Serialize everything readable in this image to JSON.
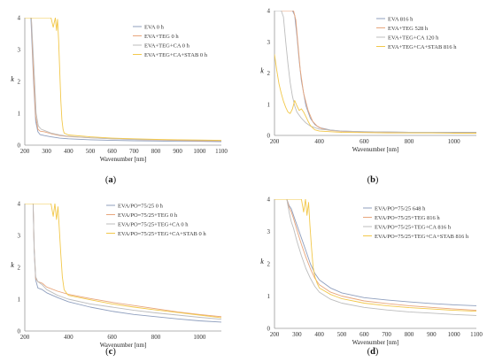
{
  "colors": {
    "series1": "#8f9fbe",
    "series2": "#e8a67c",
    "series3": "#bdbdbd",
    "series4": "#f2c84b",
    "axis": "#9a9a9a"
  },
  "chart_data": [
    {
      "type": "line",
      "caption": "a",
      "xlabel": "Wavenumber [nm]",
      "ylabel": "k",
      "xlim": [
        200,
        1100
      ],
      "ylim": [
        0,
        4
      ],
      "xticks": [
        200,
        300,
        400,
        500,
        600,
        700,
        800,
        900,
        1000,
        1100
      ],
      "yticks": [
        0,
        1,
        2,
        3,
        4
      ],
      "legend": "top-right",
      "series": [
        {
          "name": "EVA 0 h",
          "x": [
            200,
            228,
            240,
            250,
            260,
            270,
            290,
            320,
            360,
            400,
            500,
            600,
            700,
            800,
            900,
            1000,
            1100
          ],
          "values": [
            4.0,
            4.0,
            2.0,
            0.75,
            0.42,
            0.33,
            0.3,
            0.26,
            0.22,
            0.2,
            0.17,
            0.15,
            0.14,
            0.13,
            0.12,
            0.12,
            0.11
          ]
        },
        {
          "name": "EVA+TEG 0 h",
          "x": [
            200,
            230,
            240,
            250,
            260,
            270,
            290,
            320,
            360,
            400,
            500,
            600,
            700,
            800,
            900,
            1000,
            1100
          ],
          "values": [
            4.0,
            4.0,
            2.2,
            0.9,
            0.5,
            0.44,
            0.42,
            0.36,
            0.3,
            0.27,
            0.23,
            0.2,
            0.18,
            0.16,
            0.15,
            0.14,
            0.13
          ]
        },
        {
          "name": "EVA+TEG+CA 0 h",
          "x": [
            200,
            230,
            242,
            252,
            262,
            275,
            290,
            320,
            360,
            400,
            500,
            600,
            700,
            800,
            900,
            1000,
            1100
          ],
          "values": [
            4.0,
            4.0,
            2.4,
            1.0,
            0.6,
            0.5,
            0.46,
            0.38,
            0.32,
            0.28,
            0.23,
            0.2,
            0.18,
            0.17,
            0.16,
            0.15,
            0.14
          ]
        },
        {
          "name": "EVA+TEG+CA+STAB 0 h",
          "x": [
            200,
            320,
            330,
            340,
            345,
            350,
            355,
            360,
            365,
            370,
            375,
            380,
            400,
            500,
            600,
            700,
            800,
            900,
            1000,
            1100
          ],
          "values": [
            4.0,
            4.0,
            3.7,
            4.0,
            3.6,
            3.95,
            3.3,
            2.3,
            1.4,
            0.8,
            0.5,
            0.38,
            0.32,
            0.26,
            0.22,
            0.2,
            0.18,
            0.17,
            0.16,
            0.15
          ]
        }
      ]
    },
    {
      "type": "line",
      "caption": "b",
      "xlabel": "Wavenumber [nm]",
      "ylabel": "k",
      "xlim": [
        200,
        1100
      ],
      "ylim": [
        0,
        4
      ],
      "xticks": [
        200,
        400,
        600,
        800,
        1000
      ],
      "yticks": [
        0,
        1,
        2,
        3,
        4
      ],
      "legend": "top-right",
      "series": [
        {
          "name": "EVA 816 h",
          "x": [
            200,
            280,
            290,
            300,
            310,
            320,
            340,
            360,
            380,
            400,
            450,
            500,
            600,
            700,
            800,
            900,
            1000,
            1100
          ],
          "values": [
            4.0,
            4.0,
            3.85,
            3.2,
            2.4,
            1.75,
            0.95,
            0.55,
            0.35,
            0.25,
            0.17,
            0.14,
            0.12,
            0.11,
            0.1,
            0.1,
            0.1,
            0.1
          ]
        },
        {
          "name": "EVA+TEG 528 h",
          "x": [
            200,
            285,
            295,
            305,
            315,
            330,
            350,
            370,
            390,
            410,
            450,
            500,
            600,
            700,
            800,
            900,
            1000,
            1100
          ],
          "values": [
            4.0,
            4.0,
            3.7,
            2.9,
            2.1,
            1.35,
            0.8,
            0.45,
            0.3,
            0.22,
            0.16,
            0.13,
            0.11,
            0.1,
            0.1,
            0.09,
            0.09,
            0.09
          ]
        },
        {
          "name": "EVA+TEG+CA 120 h",
          "x": [
            200,
            230,
            240,
            250,
            260,
            270,
            280,
            290,
            300,
            320,
            340,
            360,
            380,
            400,
            500,
            600,
            700,
            800,
            900,
            1000,
            1100
          ],
          "values": [
            4.0,
            4.0,
            3.8,
            3.0,
            2.3,
            1.7,
            1.25,
            0.95,
            0.75,
            0.55,
            0.4,
            0.3,
            0.25,
            0.2,
            0.14,
            0.12,
            0.11,
            0.1,
            0.1,
            0.09,
            0.09
          ]
        },
        {
          "name": "EVA+TEG+CA+STAB 816 h",
          "x": [
            200,
            210,
            220,
            230,
            240,
            250,
            260,
            270,
            280,
            290,
            300,
            310,
            320,
            330,
            340,
            350,
            360,
            370,
            380,
            400,
            500,
            600,
            700,
            800,
            900,
            1000,
            1100
          ],
          "values": [
            2.6,
            2.1,
            1.65,
            1.35,
            1.1,
            0.9,
            0.75,
            0.7,
            0.85,
            1.12,
            0.95,
            0.8,
            0.85,
            0.75,
            0.6,
            0.45,
            0.32,
            0.24,
            0.18,
            0.14,
            0.1,
            0.09,
            0.08,
            0.08,
            0.08,
            0.07,
            0.07
          ]
        }
      ]
    },
    {
      "type": "line",
      "caption": "c",
      "xlabel": "Wavenumber [nm]",
      "ylabel": "k",
      "xlim": [
        200,
        1100
      ],
      "ylim": [
        0,
        4
      ],
      "xticks": [
        200,
        400,
        600,
        800,
        1000
      ],
      "yticks": [
        0,
        1,
        2,
        3,
        4
      ],
      "legend": "top-right",
      "series": [
        {
          "name": "EVA/PO=75/25 0 h",
          "x": [
            200,
            238,
            243,
            250,
            260,
            280,
            300,
            350,
            400,
            500,
            600,
            700,
            800,
            900,
            1000,
            1100
          ],
          "values": [
            4.0,
            4.0,
            2.5,
            1.6,
            1.35,
            1.3,
            1.2,
            1.05,
            0.92,
            0.75,
            0.62,
            0.52,
            0.45,
            0.38,
            0.32,
            0.28
          ]
        },
        {
          "name": "EVA/PO=75/25+TEG 0 h",
          "x": [
            200,
            238,
            243,
            250,
            260,
            280,
            300,
            350,
            400,
            500,
            600,
            700,
            800,
            900,
            1000,
            1100
          ],
          "values": [
            4.0,
            4.0,
            2.6,
            1.65,
            1.55,
            1.5,
            1.38,
            1.25,
            1.15,
            1.02,
            0.9,
            0.8,
            0.7,
            0.6,
            0.52,
            0.45
          ]
        },
        {
          "name": "EVA/PO=75/25+TEG+CA 0 h",
          "x": [
            200,
            238,
            243,
            250,
            260,
            280,
            300,
            350,
            400,
            500,
            600,
            700,
            800,
            900,
            1000,
            1100
          ],
          "values": [
            4.0,
            4.0,
            2.6,
            1.7,
            1.55,
            1.45,
            1.3,
            1.12,
            1.0,
            0.85,
            0.75,
            0.65,
            0.57,
            0.5,
            0.43,
            0.37
          ]
        },
        {
          "name": "EVA/PO=75/25+TEG+CA+STAB 0 h",
          "x": [
            200,
            320,
            330,
            338,
            345,
            352,
            358,
            365,
            372,
            380,
            390,
            400,
            500,
            600,
            700,
            800,
            900,
            1000,
            1100
          ],
          "values": [
            4.0,
            4.0,
            3.6,
            4.0,
            3.5,
            3.9,
            3.2,
            2.4,
            1.7,
            1.3,
            1.2,
            1.12,
            0.98,
            0.85,
            0.75,
            0.66,
            0.58,
            0.5,
            0.42
          ]
        }
      ]
    },
    {
      "type": "line",
      "caption": "d",
      "xlabel": "Wavenumber [nm]",
      "ylabel": "k",
      "xlim": [
        200,
        1100
      ],
      "ylim": [
        0,
        4
      ],
      "xticks": [
        200,
        300,
        400,
        500,
        600,
        700,
        800,
        900,
        1000,
        1100
      ],
      "yticks": [
        0,
        1,
        2,
        3,
        4
      ],
      "legend": "top-right",
      "series": [
        {
          "name": "EVA/PO=75/25 648 h",
          "x": [
            200,
            255,
            265,
            275,
            285,
            300,
            320,
            340,
            360,
            380,
            400,
            450,
            500,
            600,
            700,
            800,
            900,
            1000,
            1100
          ],
          "values": [
            4.0,
            4.0,
            3.8,
            3.7,
            3.5,
            3.2,
            2.8,
            2.4,
            2.0,
            1.7,
            1.5,
            1.25,
            1.1,
            0.95,
            0.88,
            0.82,
            0.77,
            0.73,
            0.7
          ]
        },
        {
          "name": "EVA/PO=75/25+TEG 816 h",
          "x": [
            200,
            255,
            265,
            275,
            285,
            300,
            320,
            340,
            360,
            380,
            400,
            450,
            500,
            600,
            700,
            800,
            900,
            1000,
            1100
          ],
          "values": [
            4.0,
            4.0,
            3.75,
            3.6,
            3.4,
            3.05,
            2.6,
            2.2,
            1.85,
            1.55,
            1.35,
            1.12,
            1.0,
            0.85,
            0.77,
            0.7,
            0.65,
            0.6,
            0.56
          ]
        },
        {
          "name": "EVA/PO=75/25+TEG+CA 816 h",
          "x": [
            200,
            255,
            265,
            275,
            285,
            300,
            320,
            340,
            360,
            380,
            400,
            450,
            500,
            600,
            700,
            800,
            900,
            1000,
            1100
          ],
          "values": [
            4.0,
            4.0,
            3.6,
            3.3,
            3.1,
            2.7,
            2.25,
            1.85,
            1.55,
            1.3,
            1.12,
            0.9,
            0.78,
            0.65,
            0.57,
            0.51,
            0.47,
            0.43,
            0.4
          ]
        },
        {
          "name": "EVA/PO=75/25+TEG+CA+STAB 816 h",
          "x": [
            200,
            320,
            330,
            338,
            345,
            352,
            358,
            365,
            372,
            380,
            390,
            400,
            450,
            500,
            600,
            700,
            800,
            900,
            1000,
            1100
          ],
          "values": [
            4.0,
            4.0,
            3.6,
            4.0,
            3.5,
            3.9,
            3.2,
            2.5,
            1.9,
            1.6,
            1.4,
            1.25,
            1.05,
            0.92,
            0.78,
            0.7,
            0.64,
            0.6,
            0.56,
            0.53
          ]
        }
      ]
    }
  ]
}
